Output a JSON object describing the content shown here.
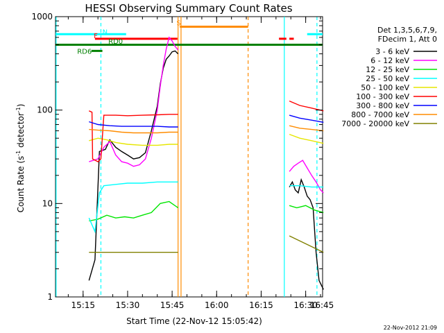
{
  "chart_data": {
    "type": "line",
    "title": "HESSI Observing Summary Count Rates",
    "xlabel": "Start Time (22-Nov-12 15:05:42)",
    "ylabel_main": "Count Rate (s",
    "ylabel_exp1": "-1",
    "ylabel_mid": " detector",
    "ylabel_exp2": "-1",
    "ylabel_end": ")",
    "y_scale": "log",
    "ylim": [
      1,
      1000
    ],
    "xlim_minutes": [
      5.7,
      95.7
    ],
    "x_ticks": [
      {
        "m": 15,
        "label": "15:15"
      },
      {
        "m": 30,
        "label": "15:30"
      },
      {
        "m": 45,
        "label": "15:45"
      },
      {
        "m": 60,
        "label": "16:00"
      },
      {
        "m": 75,
        "label": "16:15"
      },
      {
        "m": 90,
        "label": "16:30"
      },
      {
        "m": 105,
        "label": "16:45"
      }
    ],
    "y_ticks": [
      {
        "v": 1,
        "label": "1"
      },
      {
        "v": 10,
        "label": "10"
      },
      {
        "v": 100,
        "label": "100"
      },
      {
        "v": 1000,
        "label": "1000"
      }
    ],
    "legend_header": [
      "Det 1,3,5,6,7,9,",
      "FDecim 1, Att 0"
    ],
    "legend_placement": "right",
    "timestamp": "22-Nov-2012 21:09",
    "series": [
      {
        "name": "3 - 6 keV",
        "color": "#000000",
        "segments": [
          {
            "x": [
              17.0,
              19.0,
              20.5,
              22.5,
              24.0,
              26.0,
              28.0,
              30.0,
              32.0,
              34.0,
              36.0,
              38.0,
              40.0,
              41.0,
              42.0,
              43.0,
              44.0,
              45.0,
              46.0,
              47.0
            ],
            "y": [
              1.5,
              2.5,
              36.0,
              38.0,
              48.0,
              40.0,
              36.0,
              33.0,
              30.0,
              31.0,
              35.0,
              60.0,
              110.0,
              190.0,
              280.0,
              350.0,
              380.0,
              420.0,
              430.0,
              400.0
            ]
          },
          {
            "x": [
              84.5,
              85.5,
              86.5,
              87.5,
              88.5,
              89.5,
              90.5,
              91.5,
              92.5,
              93.5,
              94.5,
              96.0
            ],
            "y": [
              15.0,
              17.0,
              14.0,
              13.0,
              18.0,
              15.0,
              12.0,
              11.0,
              9.0,
              3.0,
              1.5,
              1.2
            ]
          }
        ]
      },
      {
        "name": "6 - 12 keV",
        "color": "#ff00ff",
        "segments": [
          {
            "x": [
              17.0,
              20.0,
              22.0,
              24.0,
              26.0,
              28.0,
              30.0,
              32.0,
              34.0,
              36.0,
              38.0,
              40.0,
              41.0,
              42.0,
              43.0,
              44.0,
              45.0,
              46.0,
              47.0
            ],
            "y": [
              28.0,
              30.0,
              40.0,
              46.0,
              33.0,
              28.0,
              27.0,
              25.0,
              26.0,
              30.0,
              50.0,
              100.0,
              180.0,
              300.0,
              450.0,
              600.0,
              550.0,
              480.0,
              440.0
            ]
          },
          {
            "x": [
              84.5,
              86.0,
              87.5,
              89.0,
              90.5,
              92.0,
              93.5,
              95.0,
              96.0
            ],
            "y": [
              22.0,
              25.0,
              27.0,
              29.0,
              24.0,
              20.0,
              17.0,
              14.0,
              13.0
            ]
          }
        ]
      },
      {
        "name": "12 - 25 keV",
        "color": "#00e600",
        "segments": [
          {
            "x": [
              17.0,
              20.0,
              23.0,
              26.0,
              29.0,
              32.0,
              35.0,
              38.0,
              41.0,
              44.0,
              47.0
            ],
            "y": [
              6.5,
              6.8,
              7.5,
              7.0,
              7.2,
              7.0,
              7.5,
              8.0,
              10.0,
              10.5,
              9.0
            ]
          },
          {
            "x": [
              84.5,
              87.0,
              90.0,
              93.0,
              96.0
            ],
            "y": [
              9.5,
              9.0,
              9.5,
              8.5,
              8.0
            ]
          }
        ]
      },
      {
        "name": "25 - 50 keV",
        "color": "#00ffff",
        "segments": [
          {
            "x": [
              17.0,
              19.0,
              20.5,
              22.0,
              26.0,
              30.0,
              35.0,
              40.0,
              44.0,
              47.0
            ],
            "y": [
              7.0,
              5.0,
              13.0,
              15.5,
              16.0,
              16.5,
              16.5,
              17.0,
              17.0,
              17.0
            ]
          },
          {
            "x": [
              84.5,
              88.0,
              92.0,
              96.0
            ],
            "y": [
              15.5,
              15.5,
              15.0,
              15.0
            ]
          }
        ]
      },
      {
        "name": "50 - 100 keV",
        "color": "#e6e600",
        "segments": [
          {
            "x": [
              17.0,
              20.0,
              23.0,
              26.0,
              30.0,
              35.0,
              40.0,
              44.0,
              47.0
            ],
            "y": [
              47.0,
              50.0,
              48.0,
              45.0,
              43.0,
              42.0,
              42.0,
              43.0,
              43.0
            ]
          },
          {
            "x": [
              84.5,
              88.0,
              92.0,
              96.0
            ],
            "y": [
              55.0,
              50.0,
              47.0,
              44.0
            ]
          }
        ]
      },
      {
        "name": "100 - 300 keV",
        "color": "#ff0000",
        "segments": [
          {
            "x": [
              17.0,
              18.0,
              18.2,
              20.0,
              21.0,
              22.0,
              26.0,
              30.0,
              35.0,
              40.0,
              44.0,
              47.0
            ],
            "y": [
              98.0,
              95.0,
              30.0,
              28.0,
              30.0,
              88.0,
              88.0,
              87.0,
              88.0,
              89.0,
              90.0,
              90.0
            ]
          },
          {
            "x": [
              84.5,
              88.0,
              92.0,
              96.0
            ],
            "y": [
              125.0,
              112.0,
              105.0,
              98.0
            ]
          }
        ]
      },
      {
        "name": "300 - 800 keV",
        "color": "#0000ff",
        "segments": [
          {
            "x": [
              17.0,
              20.0,
              24.0,
              28.0,
              32.0,
              36.0,
              40.0,
              44.0,
              47.0
            ],
            "y": [
              75.0,
              70.0,
              68.0,
              67.0,
              67.0,
              67.0,
              67.0,
              66.0,
              66.0
            ]
          },
          {
            "x": [
              84.5,
              88.0,
              92.0,
              96.0
            ],
            "y": [
              88.0,
              82.0,
              78.0,
              74.0
            ]
          }
        ]
      },
      {
        "name": "800 - 7000 keV",
        "color": "#ff8c00",
        "segments": [
          {
            "x": [
              17.0,
              20.0,
              24.0,
              28.0,
              32.0,
              36.0,
              40.0,
              44.0,
              47.0
            ],
            "y": [
              62.0,
              61.0,
              60.0,
              58.0,
              57.0,
              57.0,
              57.0,
              58.0,
              58.0
            ]
          },
          {
            "x": [
              84.5,
              88.0,
              92.0,
              96.0
            ],
            "y": [
              68.0,
              64.0,
              62.0,
              60.0
            ]
          }
        ]
      },
      {
        "name": "7000 - 20000 keV",
        "color": "#808000",
        "segments": [
          {
            "x": [
              17.0,
              47.0
            ],
            "y": [
              3.0,
              3.0
            ]
          },
          {
            "x": [
              84.5,
              96.0
            ],
            "y": [
              4.5,
              3.0
            ]
          }
        ]
      }
    ],
    "flag_bars": [
      {
        "label": "N",
        "label_color": "#00ffff",
        "color": "#00ffff",
        "ranges": [
          [
            5.7,
            29.5
          ],
          [
            90.5,
            95.7
          ]
        ],
        "y": 650,
        "label_x": 21.5,
        "label_y": 680
      },
      {
        "label": "F",
        "label_color": "#ff0000",
        "color": "#ff0000",
        "ranges": [
          [
            19.0,
            46.8
          ],
          [
            81.0,
            83.5
          ],
          [
            84.5,
            86.0
          ]
        ],
        "y": 580,
        "label_x": 18.6,
        "label_y": 620
      },
      {
        "label": "RD0",
        "label_color": "#008000",
        "color": "#008000",
        "ranges": [
          [
            5.7,
            95.7
          ]
        ],
        "y": 500,
        "label_x": 23.5,
        "label_y": 540
      },
      {
        "label": "RD6",
        "label_color": "#008000",
        "color": "#008000",
        "ranges": [
          [
            17.8,
            21.5
          ]
        ],
        "y": 430,
        "label_x": 13.0,
        "label_y": 420
      },
      {
        "label": "S",
        "label_color": "#ff8c00",
        "color": "#ff8c00",
        "ranges": [
          [
            47.6,
            70.6
          ]
        ],
        "y": 780,
        "label_x": 46.5,
        "label_y": 850
      }
    ],
    "vertical_markers": [
      {
        "x": 5.9,
        "color": "#00ffff",
        "style": "solid"
      },
      {
        "x": 21.0,
        "color": "#00ffff",
        "style": "dash"
      },
      {
        "x": 47.0,
        "color": "#ff8c00",
        "style": "solid"
      },
      {
        "x": 48.0,
        "color": "#ff8c00",
        "style": "solid"
      },
      {
        "x": 70.6,
        "color": "#ff8c00",
        "style": "dash"
      },
      {
        "x": 82.8,
        "color": "#00ffff",
        "style": "solid"
      },
      {
        "x": 93.8,
        "color": "#00ffff",
        "style": "dash"
      }
    ]
  }
}
